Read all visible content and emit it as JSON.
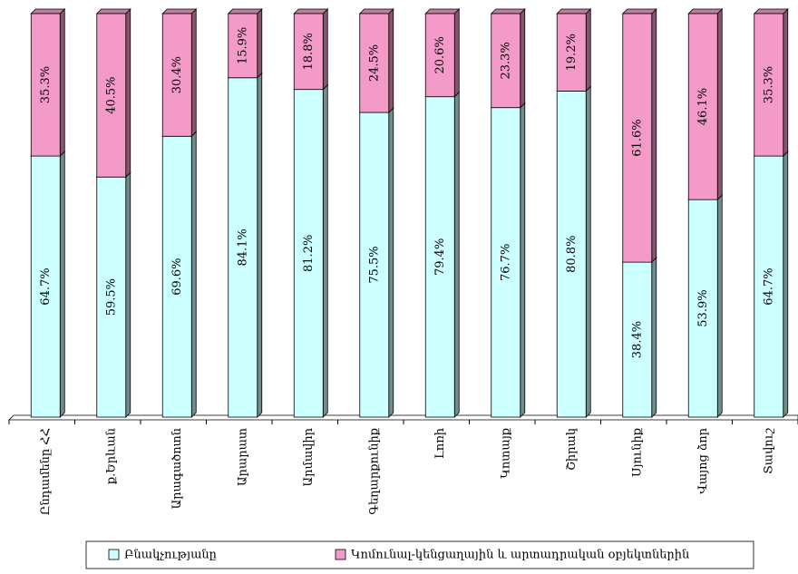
{
  "chart_data": {
    "type": "stacked_bar_100",
    "categories": [
      "Ընդամենը ՀՀ",
      "ք.Երևան",
      "Արագածոտն",
      "Արարատ",
      "Արմավիր",
      "Գեղարքունիք",
      "Լոռի",
      "Կոտայք",
      "Շիրակ",
      "Սյունիք",
      "Վայոց ձոր",
      "Տավուշ"
    ],
    "series": [
      {
        "name": "Բնակչությանը",
        "color": "#ccffff",
        "values": [
          64.7,
          59.5,
          69.6,
          84.1,
          81.2,
          75.5,
          79.4,
          76.7,
          80.8,
          38.4,
          53.9,
          64.7
        ],
        "value_labels": [
          "64.7%",
          "59.5%",
          "69.6%",
          "84.1%",
          "81.2%",
          "75.5%",
          "79.4%",
          "76.7%",
          "80.8%",
          "38.4%",
          "53.9%",
          "64.7%"
        ]
      },
      {
        "name": "Կոմունալ-կենցաղային և արտադրական օբյեկտներին",
        "color": "#f49ac8",
        "values": [
          35.3,
          40.5,
          30.4,
          15.9,
          18.8,
          24.5,
          20.6,
          23.3,
          19.2,
          61.6,
          46.1,
          35.3
        ],
        "value_labels": [
          "35.3%",
          "40.5%",
          "30.4%",
          "15.9%",
          "18.8%",
          "24.5%",
          "20.6%",
          "23.3%",
          "19.2%",
          "61.6%",
          "46.1%",
          "35.3%"
        ]
      }
    ],
    "ylim": [
      0,
      100
    ],
    "legend": "bottom"
  }
}
